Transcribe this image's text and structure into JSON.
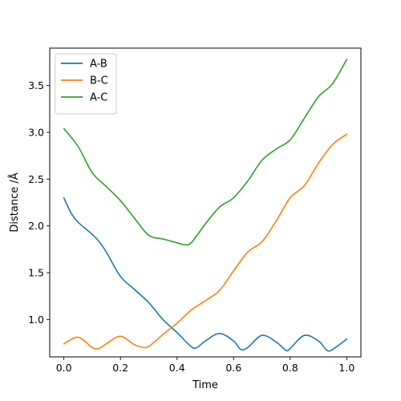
{
  "chart_data": {
    "type": "line",
    "xlabel": "Time",
    "ylabel": "Distance /Å",
    "xlim": [
      -0.05,
      1.05
    ],
    "ylim": [
      0.6,
      3.9
    ],
    "x_ticks": [
      0.0,
      0.2,
      0.4,
      0.6,
      0.8,
      1.0
    ],
    "x_tick_labels": [
      "0.0",
      "0.2",
      "0.4",
      "0.6",
      "0.8",
      "1.0"
    ],
    "y_ticks": [
      1.0,
      1.5,
      2.0,
      2.5,
      3.0,
      3.5
    ],
    "y_tick_labels": [
      "1.0",
      "1.5",
      "2.0",
      "2.5",
      "3.0",
      "3.5"
    ],
    "grid": false,
    "legend_position": "top-left",
    "series": [
      {
        "name": "A-B",
        "color": "#1f77b4",
        "x": [
          0.0,
          0.025,
          0.05,
          0.1,
          0.125,
          0.15,
          0.2,
          0.25,
          0.3,
          0.35,
          0.4,
          0.45,
          0.47,
          0.5,
          0.55,
          0.6,
          0.625,
          0.65,
          0.7,
          0.75,
          0.785,
          0.8,
          0.85,
          0.9,
          0.93,
          0.95,
          1.0
        ],
        "y": [
          2.3,
          2.14,
          2.04,
          1.91,
          1.83,
          1.72,
          1.46,
          1.32,
          1.18,
          1.0,
          0.86,
          0.71,
          0.7,
          0.77,
          0.85,
          0.77,
          0.68,
          0.7,
          0.83,
          0.76,
          0.67,
          0.69,
          0.83,
          0.77,
          0.67,
          0.68,
          0.79
        ]
      },
      {
        "name": "B-C",
        "color": "#ff7f0e",
        "x": [
          0.0,
          0.05,
          0.1,
          0.125,
          0.15,
          0.2,
          0.25,
          0.29,
          0.32,
          0.35,
          0.4,
          0.45,
          0.5,
          0.55,
          0.6,
          0.65,
          0.7,
          0.75,
          0.8,
          0.85,
          0.9,
          0.95,
          1.0
        ],
        "y": [
          0.74,
          0.81,
          0.7,
          0.69,
          0.74,
          0.82,
          0.73,
          0.7,
          0.76,
          0.84,
          0.96,
          1.1,
          1.2,
          1.31,
          1.52,
          1.72,
          1.83,
          2.05,
          2.3,
          2.43,
          2.67,
          2.87,
          2.98
        ]
      },
      {
        "name": "A-C",
        "color": "#2ca02c",
        "x": [
          0.0,
          0.05,
          0.1,
          0.15,
          0.2,
          0.25,
          0.3,
          0.35,
          0.4,
          0.425,
          0.45,
          0.5,
          0.55,
          0.6,
          0.65,
          0.7,
          0.75,
          0.8,
          0.85,
          0.9,
          0.95,
          1.0
        ],
        "y": [
          3.04,
          2.85,
          2.57,
          2.42,
          2.27,
          2.08,
          1.9,
          1.86,
          1.82,
          1.8,
          1.82,
          2.02,
          2.2,
          2.3,
          2.48,
          2.7,
          2.82,
          2.92,
          3.15,
          3.38,
          3.52,
          3.78
        ]
      }
    ]
  }
}
